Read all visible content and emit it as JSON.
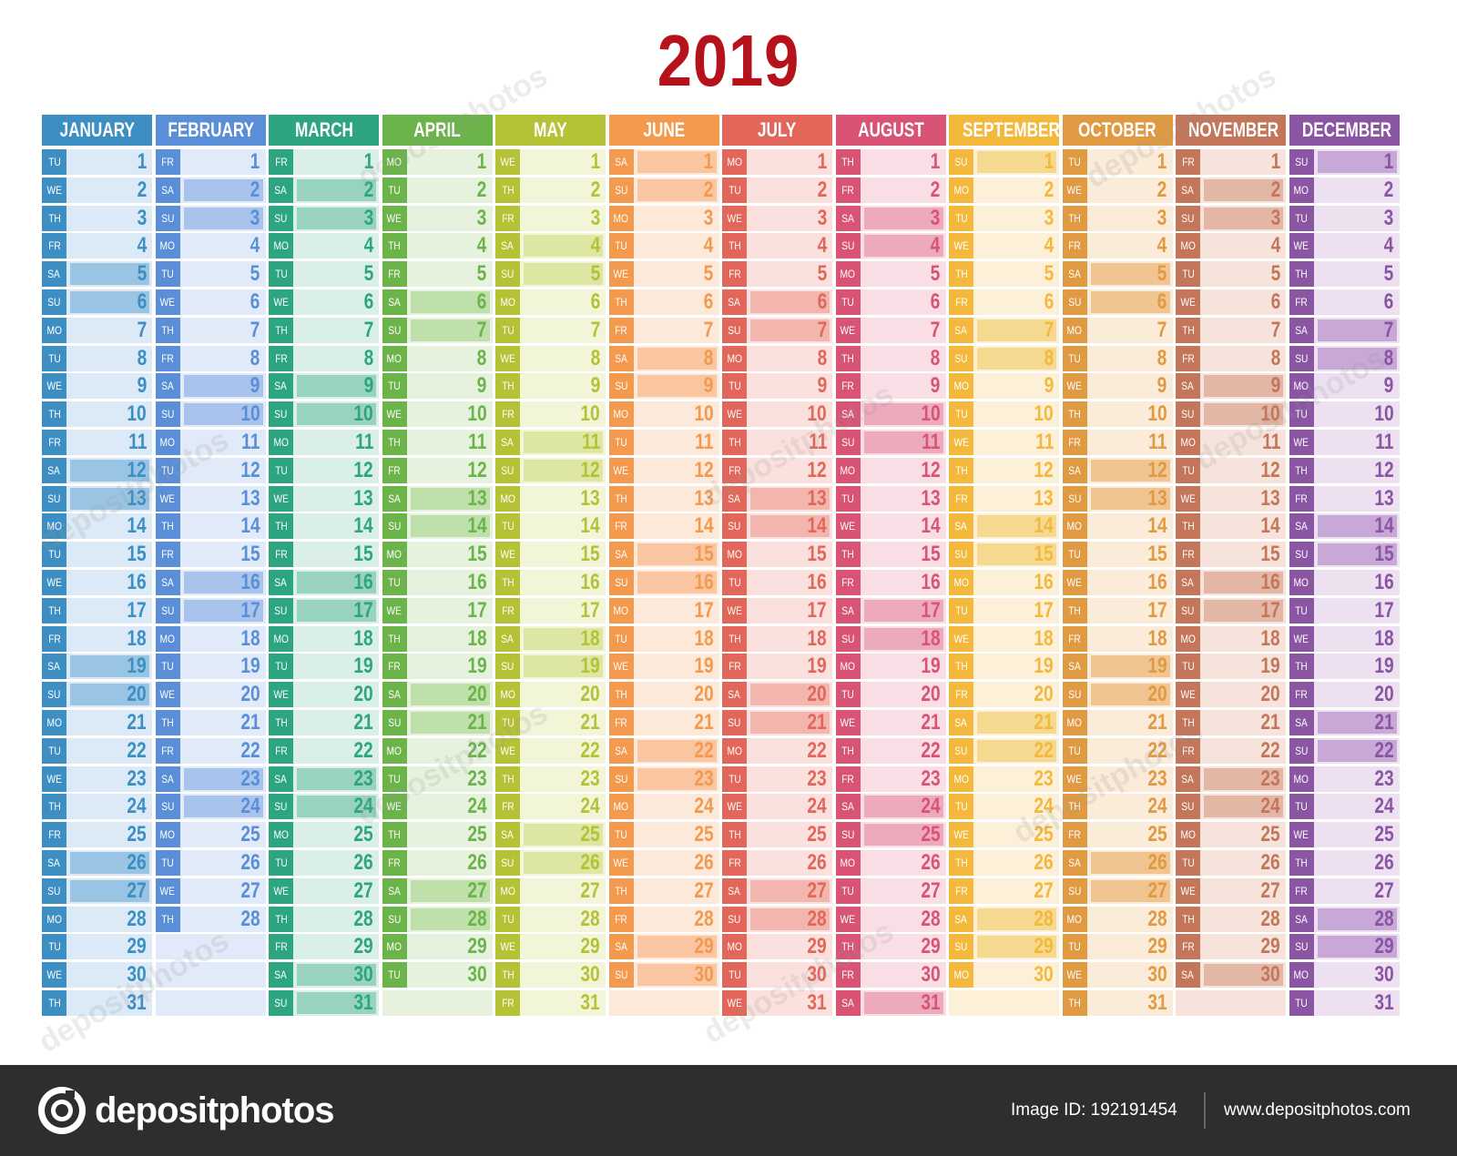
{
  "title": "2019",
  "months": [
    {
      "name": "JANUARY",
      "color": "#3d8fc3",
      "light": "#dbeaf6",
      "weekend": "#9ac4e4",
      "start": 1,
      "days": 31
    },
    {
      "name": "FEBRUARY",
      "color": "#5a8fd8",
      "light": "#e1eaf8",
      "weekend": "#a9c4ec",
      "start": 4,
      "days": 28
    },
    {
      "name": "MARCH",
      "color": "#2ea581",
      "light": "#daf0e7",
      "weekend": "#98d4bd",
      "start": 4,
      "days": 31
    },
    {
      "name": "APRIL",
      "color": "#6bb44a",
      "light": "#e6f2dd",
      "weekend": "#bfe0aa",
      "start": 0,
      "days": 30
    },
    {
      "name": "MAY",
      "color": "#b5c235",
      "light": "#f2f5d8",
      "weekend": "#dde6a3",
      "start": 2,
      "days": 31
    },
    {
      "name": "JUNE",
      "color": "#f39a4f",
      "light": "#fde9da",
      "weekend": "#fac5a1",
      "start": 5,
      "days": 30
    },
    {
      "name": "JULY",
      "color": "#e2675a",
      "light": "#fbe1de",
      "weekend": "#f2b6ae",
      "start": 0,
      "days": 31
    },
    {
      "name": "AUGUST",
      "color": "#d95474",
      "light": "#f9dfe5",
      "weekend": "#edaabd",
      "start": 3,
      "days": 31
    },
    {
      "name": "SEPTEMBER",
      "color": "#f3b83c",
      "light": "#fdf0d8",
      "weekend": "#f6d990",
      "start": 6,
      "days": 30
    },
    {
      "name": "OCTOBER",
      "color": "#e09a42",
      "light": "#fbebd9",
      "weekend": "#f0c591",
      "start": 1,
      "days": 31
    },
    {
      "name": "NOVEMBER",
      "color": "#c3765a",
      "light": "#f6e4dc",
      "weekend": "#e3b7a5",
      "start": 4,
      "days": 30
    },
    {
      "name": "DECEMBER",
      "color": "#8a55a3",
      "light": "#ece0f1",
      "weekend": "#c7a8d6",
      "start": 6,
      "days": 31
    }
  ],
  "weekday_abbr": [
    "MO",
    "TU",
    "WE",
    "TH",
    "FR",
    "SA",
    "SU"
  ],
  "footer": {
    "brand": "depositphotos",
    "image_id_label": "Image ID: 192191454",
    "site": "www.depositphotos.com"
  },
  "watermark_text": "depositphotos"
}
